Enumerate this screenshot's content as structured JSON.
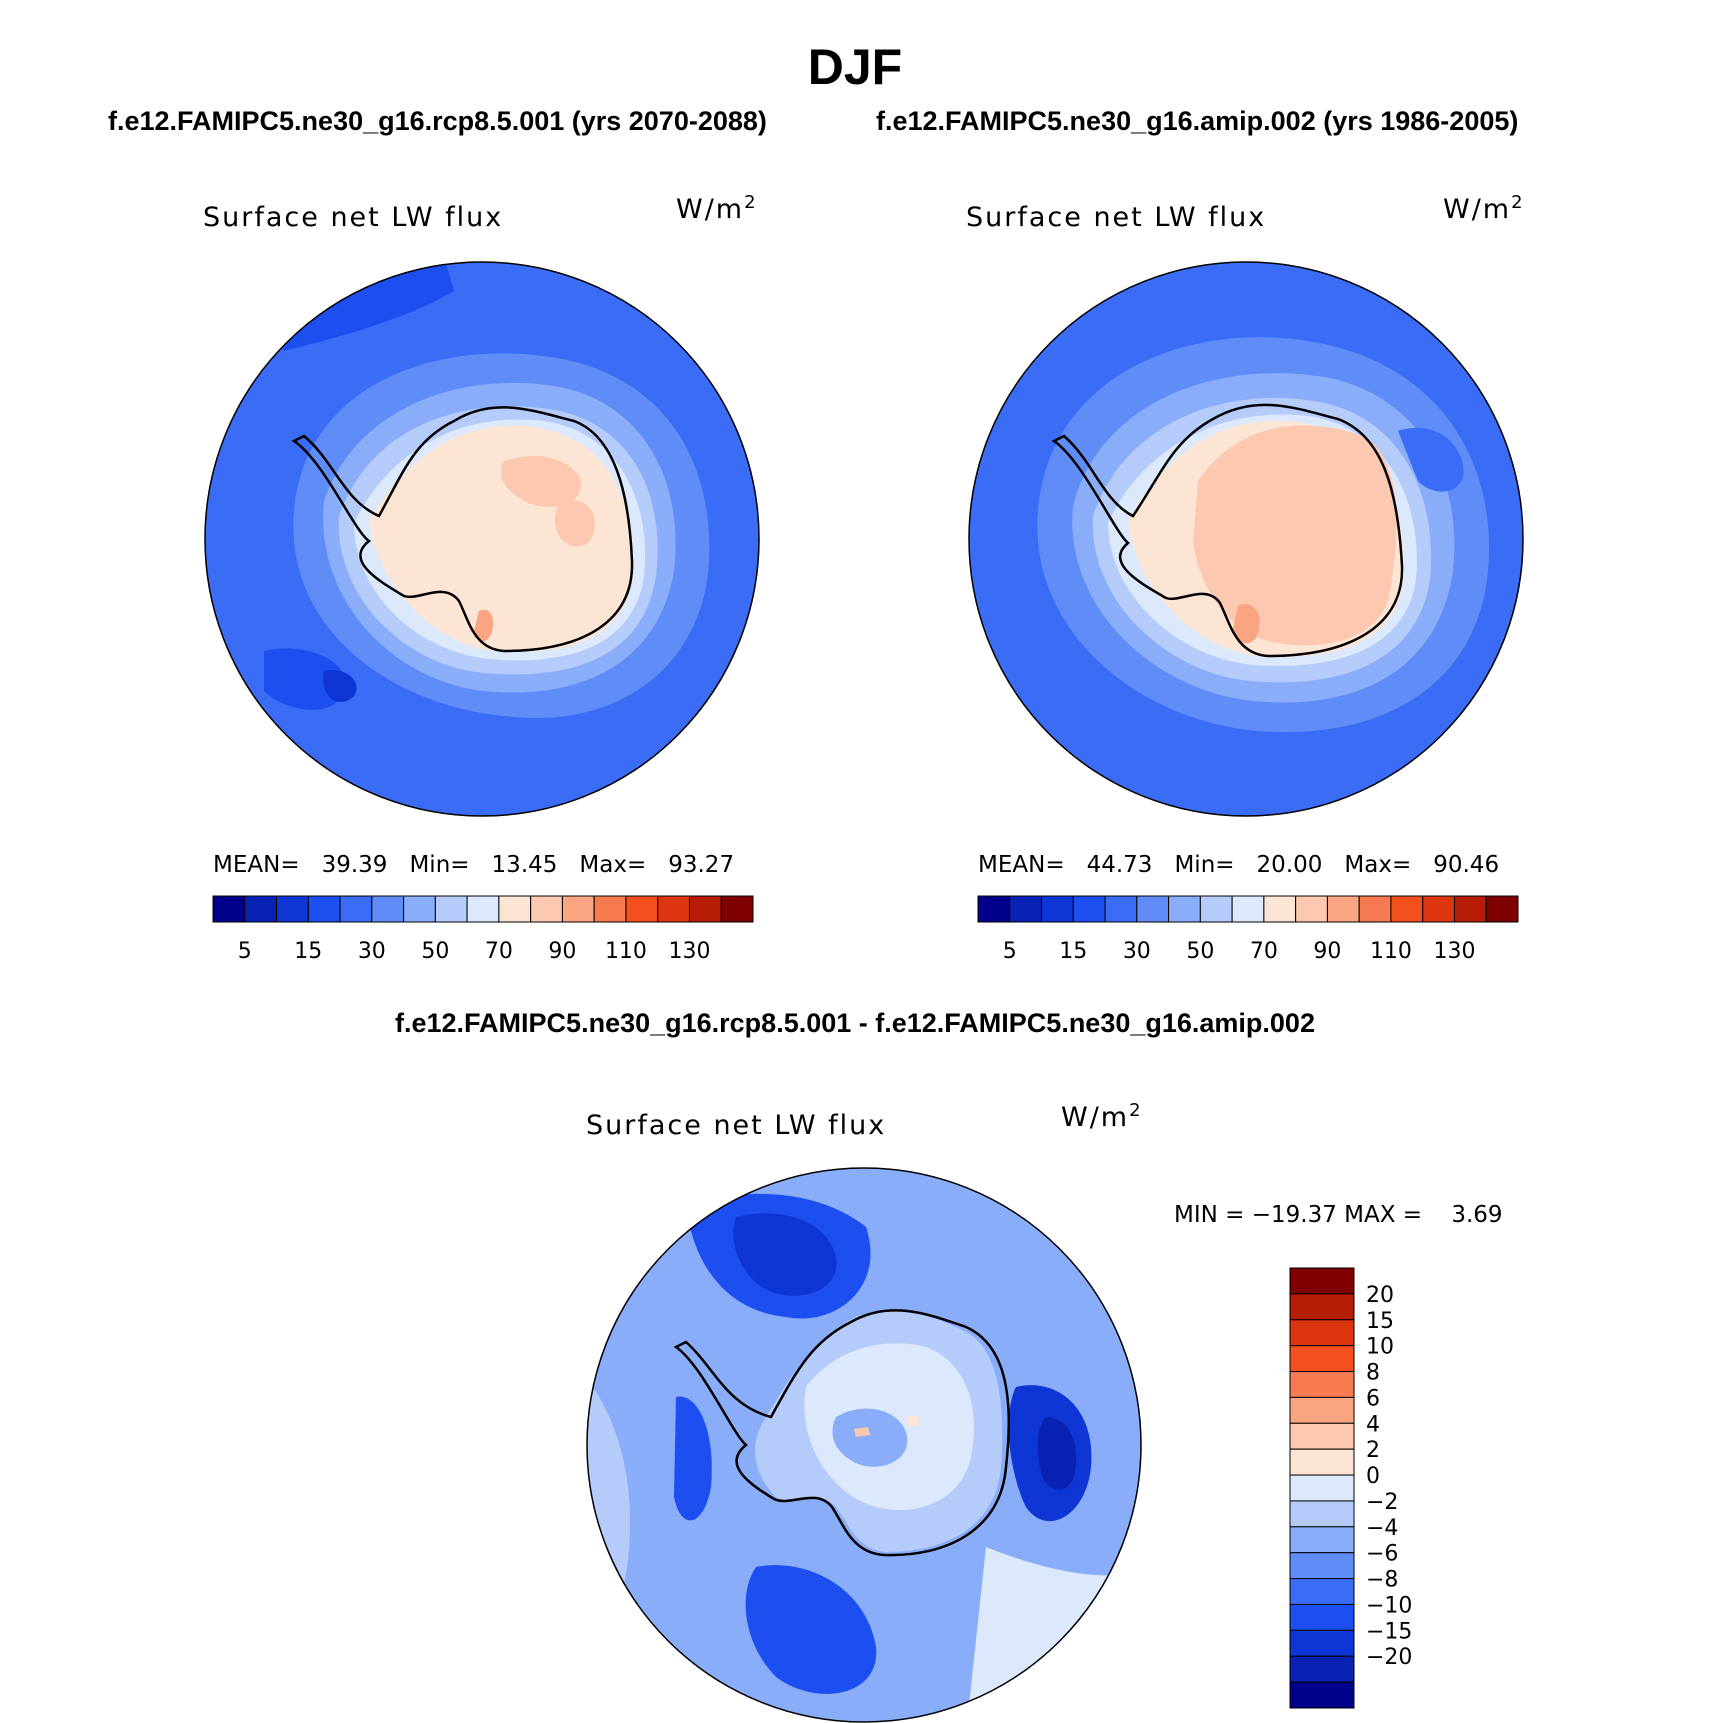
{
  "title": "DJF",
  "case_a_label": "f.e12.FAMIPC5.ne30_g16.rcp8.5.001 (yrs 2070-2088)",
  "case_b_label": "f.e12.FAMIPC5.ne30_g16.amip.002 (yrs 1986-2005)",
  "diff_label": "f.e12.FAMIPC5.ne30_g16.rcp8.5.001 - f.e12.FAMIPC5.ne30_g16.amip.002",
  "panels": [
    {
      "variable": "Surface net LW flux",
      "units": "W/m",
      "units_exp": "2",
      "mean_label": "MEAN=",
      "mean": "39.39",
      "min_label": "Min=",
      "min": "13.45",
      "max_label": "Max=",
      "max": "93.27"
    },
    {
      "variable": "Surface net LW flux",
      "units": "W/m",
      "units_exp": "2",
      "mean_label": "MEAN=",
      "mean": "44.73",
      "min_label": "Min=",
      "min": "20.00",
      "max_label": "Max=",
      "max": "90.46"
    },
    {
      "variable": "Surface net LW flux",
      "units": "W/m",
      "units_exp": "2",
      "minmax": "MIN = −19.37 MAX =    3.69"
    }
  ],
  "chart_data": [
    {
      "type": "map",
      "projection": "south-polar-stereographic",
      "title": "Surface net LW flux",
      "case": "f.e12.FAMIPC5.ne30_g16.rcp8.5.001 (yrs 2070-2088)",
      "units": "W/m2",
      "stats": {
        "mean": 39.39,
        "min": 13.45,
        "max": 93.27
      },
      "colorbar": {
        "orientation": "horizontal",
        "levels": [
          5,
          10,
          15,
          20,
          30,
          40,
          50,
          60,
          70,
          80,
          90,
          100,
          110,
          120,
          130
        ],
        "tick_labels": [
          "5",
          "15",
          "30",
          "50",
          "70",
          "90",
          "110",
          "130"
        ],
        "colors": [
          "#00008b",
          "#0a22b4",
          "#0e36d4",
          "#1c4ef0",
          "#3b6cf5",
          "#5f8cf7",
          "#8aadf9",
          "#b5ccfb",
          "#dce9fc",
          "#fde5d5",
          "#fcc9b0",
          "#f9a582",
          "#f87a50",
          "#f4501e",
          "#dc3510",
          "#b71d06",
          "#7e0000"
        ]
      }
    },
    {
      "type": "map",
      "projection": "south-polar-stereographic",
      "title": "Surface net LW flux",
      "case": "f.e12.FAMIPC5.ne30_g16.amip.002 (yrs 1986-2005)",
      "units": "W/m2",
      "stats": {
        "mean": 44.73,
        "min": 20.0,
        "max": 90.46
      },
      "colorbar": {
        "orientation": "horizontal",
        "levels": [
          5,
          10,
          15,
          20,
          30,
          40,
          50,
          60,
          70,
          80,
          90,
          100,
          110,
          120,
          130
        ],
        "tick_labels": [
          "5",
          "15",
          "30",
          "50",
          "70",
          "90",
          "110",
          "130"
        ],
        "colors": [
          "#00008b",
          "#0a22b4",
          "#0e36d4",
          "#1c4ef0",
          "#3b6cf5",
          "#5f8cf7",
          "#8aadf9",
          "#b5ccfb",
          "#dce9fc",
          "#fde5d5",
          "#fcc9b0",
          "#f9a582",
          "#f87a50",
          "#f4501e",
          "#dc3510",
          "#b71d06",
          "#7e0000"
        ]
      }
    },
    {
      "type": "map",
      "projection": "south-polar-stereographic",
      "title": "Surface net LW flux",
      "case": "f.e12.FAMIPC5.ne30_g16.rcp8.5.001 - f.e12.FAMIPC5.ne30_g16.amip.002",
      "units": "W/m2",
      "stats": {
        "min": -19.37,
        "max": 3.69
      },
      "colorbar": {
        "orientation": "vertical",
        "levels": [
          20,
          15,
          10,
          8,
          6,
          4,
          2,
          0,
          -2,
          -4,
          -6,
          -8,
          -10,
          -15,
          -20
        ],
        "tick_labels": [
          "20",
          "15",
          "10",
          "8",
          "6",
          "4",
          "2",
          "0",
          "−2",
          "−4",
          "−6",
          "−8",
          "−10",
          "−15",
          "−20"
        ],
        "colors": [
          "#7e0000",
          "#b71d06",
          "#dc3510",
          "#f4501e",
          "#f87a50",
          "#f9a582",
          "#fcc9b0",
          "#fde5d5",
          "#dce9fc",
          "#b5ccfb",
          "#8aadf9",
          "#5f8cf7",
          "#3b6cf5",
          "#1c4ef0",
          "#0e36d4",
          "#0a22b4",
          "#00008b"
        ]
      }
    }
  ]
}
